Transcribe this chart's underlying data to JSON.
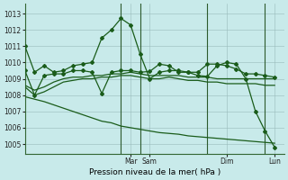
{
  "xlabel": "Pression niveau de la mer( hPa )",
  "background_color": "#c8eaea",
  "grid_color": "#99bbbb",
  "line_color": "#1a5c1a",
  "ylim": [
    1004.4,
    1013.6
  ],
  "yticks": [
    1005,
    1006,
    1007,
    1008,
    1009,
    1010,
    1011,
    1012,
    1013
  ],
  "xlim": [
    0,
    27
  ],
  "vline_positions": [
    10,
    12,
    19,
    25
  ],
  "xtick_positions": [
    11,
    13,
    21,
    26
  ],
  "xtick_labels": [
    "Mar",
    "Sam",
    "Dim",
    "Lun"
  ],
  "s1_x": [
    0,
    1,
    2,
    3,
    4,
    5,
    6,
    7,
    8,
    9,
    10,
    11,
    12,
    13,
    14,
    15,
    16,
    17,
    18,
    19,
    20,
    21,
    22,
    23,
    24,
    25,
    26
  ],
  "s1_y": [
    1011.0,
    1009.4,
    1009.8,
    1009.4,
    1009.5,
    1009.8,
    1009.9,
    1010.0,
    1011.5,
    1012.0,
    1012.7,
    1012.3,
    1010.5,
    1009.0,
    1009.4,
    1009.5,
    1009.5,
    1009.4,
    1009.4,
    1009.9,
    1009.9,
    1009.8,
    1009.6,
    1009.3,
    1009.3,
    1009.2,
    1009.1
  ],
  "s2_x": [
    0,
    1,
    2,
    3,
    4,
    5,
    6,
    7,
    8,
    9,
    10,
    11,
    12,
    13,
    14,
    15,
    16,
    17,
    18,
    19,
    20,
    21,
    22,
    23,
    24,
    25,
    26
  ],
  "s2_y": [
    1008.6,
    1008.3,
    1008.5,
    1008.8,
    1009.0,
    1009.1,
    1009.1,
    1009.2,
    1009.2,
    1009.3,
    1009.3,
    1009.4,
    1009.3,
    1009.2,
    1009.2,
    1009.2,
    1009.2,
    1009.1,
    1009.1,
    1009.1,
    1009.0,
    1009.0,
    1009.0,
    1009.0,
    1009.0,
    1009.0,
    1009.0
  ],
  "s3_x": [
    0,
    1,
    2,
    3,
    4,
    5,
    6,
    7,
    8,
    9,
    10,
    11,
    12,
    13,
    14,
    15,
    16,
    17,
    18,
    19,
    20,
    21,
    22,
    23,
    24,
    25,
    26
  ],
  "s3_y": [
    1008.5,
    1008.0,
    1008.2,
    1008.5,
    1008.8,
    1008.9,
    1009.0,
    1009.0,
    1009.1,
    1009.1,
    1009.2,
    1009.2,
    1009.1,
    1009.0,
    1009.0,
    1009.1,
    1009.0,
    1008.9,
    1008.9,
    1008.8,
    1008.8,
    1008.7,
    1008.7,
    1008.7,
    1008.7,
    1008.6,
    1008.6
  ],
  "s4_x": [
    0,
    1,
    2,
    3,
    4,
    5,
    6,
    7,
    8,
    9,
    10,
    11,
    12,
    13,
    14,
    15,
    16,
    17,
    18,
    19,
    20,
    21,
    22,
    23,
    24,
    25,
    26
  ],
  "s4_y": [
    1007.9,
    1007.75,
    1007.6,
    1007.4,
    1007.2,
    1007.0,
    1006.8,
    1006.6,
    1006.4,
    1006.3,
    1006.1,
    1006.0,
    1005.9,
    1005.8,
    1005.7,
    1005.65,
    1005.6,
    1005.5,
    1005.45,
    1005.4,
    1005.35,
    1005.3,
    1005.25,
    1005.2,
    1005.15,
    1005.1,
    1005.05
  ],
  "s5_x": [
    0,
    1,
    2,
    3,
    4,
    5,
    6,
    7,
    8,
    9,
    10,
    11,
    12,
    13,
    14,
    15,
    16,
    17,
    18,
    19,
    20,
    21,
    22,
    23,
    24,
    25,
    26
  ],
  "s5_y": [
    1009.5,
    1008.0,
    1009.2,
    1009.3,
    1009.3,
    1009.5,
    1009.5,
    1009.4,
    1008.1,
    1009.4,
    1009.5,
    1009.5,
    1009.4,
    1009.45,
    1009.9,
    1009.8,
    1009.4,
    1009.4,
    1009.2,
    1009.15,
    1009.8,
    1010.0,
    1009.9,
    1009.0,
    1007.0,
    1005.8,
    1004.8
  ]
}
